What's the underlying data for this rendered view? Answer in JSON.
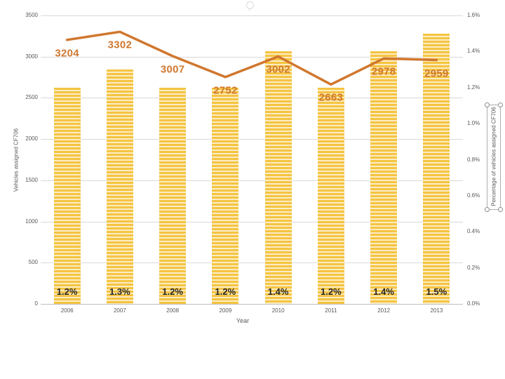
{
  "chart_data": {
    "type": "combo-bar-line",
    "categories": [
      "2006",
      "2007",
      "2008",
      "2009",
      "2010",
      "2011",
      "2012",
      "2013"
    ],
    "series": [
      {
        "name": "Vehicles assigned CF706",
        "type": "line",
        "axis": "left",
        "values": [
          3204,
          3302,
          3007,
          2752,
          3002,
          2663,
          2978,
          2959
        ],
        "labels": [
          "3204",
          "3302",
          "3007",
          "2752",
          "3002",
          "2663",
          "2978",
          "2959"
        ],
        "color": "#D0772E"
      },
      {
        "name": "Percentage of vehicles assigned CF706",
        "type": "bar",
        "axis": "right",
        "values": [
          1.2,
          1.3,
          1.2,
          1.2,
          1.4,
          1.2,
          1.4,
          1.5
        ],
        "labels": [
          "1.2%",
          "1.3%",
          "1.2%",
          "1.2%",
          "1.4%",
          "1.2%",
          "1.4%",
          "1.5%"
        ],
        "color": "#F5C441",
        "stripe_color": "#FBECC4"
      }
    ],
    "xlabel": "Year",
    "left_axis": {
      "title": "Vehicles assigned CF706",
      "min": 0,
      "max": 3500,
      "ticks": [
        "3500",
        "3000",
        "2500",
        "2000",
        "1500",
        "1000",
        "500",
        "0"
      ]
    },
    "right_axis": {
      "title": "Percentage of vehicles assigned CF706",
      "min": 0,
      "max": 1.6,
      "ticks": [
        "1.6%",
        "1.4%",
        "1.2%",
        "1.0%",
        "0.8%",
        "0.6%",
        "0.4%",
        "0.2%",
        "0.0%"
      ]
    },
    "grid": "horizontal",
    "legend": "none"
  },
  "colors": {
    "line": "#D0772E",
    "bar": "#F5C441",
    "bar_stripe": "#FBECC4",
    "gridline": "#D9D9D9",
    "axis_line": "#BFBFBF",
    "tick_text": "#595959",
    "pct_text": "#262626",
    "background": "#FFFFFF"
  },
  "editor": {
    "selected_element": "right-axis-title"
  }
}
